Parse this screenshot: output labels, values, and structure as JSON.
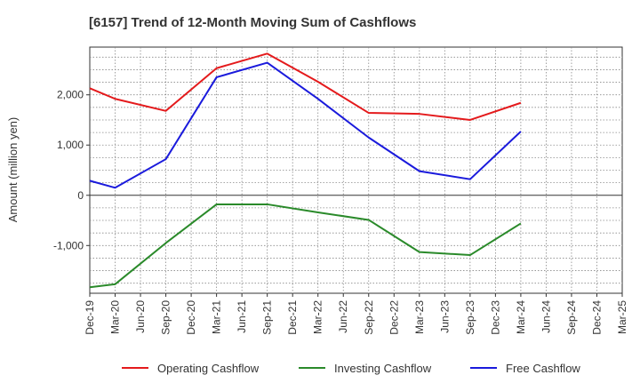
{
  "chart_data": {
    "type": "line",
    "title": "[6157]  Trend of 12-Month Moving Sum of Cashflows",
    "xlabel": "",
    "ylabel": "Amount (million yen)",
    "ylim": [
      -1950,
      2950
    ],
    "grid": true,
    "legend_position": "bottom",
    "x": [
      "Dec-19",
      "Mar-20",
      "Jun-20",
      "Sep-20",
      "Dec-20",
      "Mar-21",
      "Jun-21",
      "Sep-21",
      "Dec-21",
      "Mar-22",
      "Jun-22",
      "Sep-22",
      "Dec-22",
      "Mar-23",
      "Jun-23",
      "Sep-23",
      "Dec-23",
      "Mar-24",
      "Jun-24",
      "Sep-24",
      "Dec-24",
      "Mar-25"
    ],
    "y_ticks": [
      {
        "value": 2000,
        "label": "2,000"
      },
      {
        "value": 1000,
        "label": "1,000"
      },
      {
        "value": 0,
        "label": "0"
      },
      {
        "value": -1000,
        "label": "-1,000"
      }
    ],
    "series": [
      {
        "name": "Operating Cashflow",
        "color": "#e41a1c",
        "points": [
          {
            "x": "Dec-19",
            "y": 2130
          },
          {
            "x": "Mar-20",
            "y": 1920
          },
          {
            "x": "Sep-20",
            "y": 1680
          },
          {
            "x": "Mar-21",
            "y": 2530
          },
          {
            "x": "Sep-21",
            "y": 2820
          },
          {
            "x": "Mar-22",
            "y": 2260
          },
          {
            "x": "Sep-22",
            "y": 1640
          },
          {
            "x": "Mar-23",
            "y": 1620
          },
          {
            "x": "Sep-23",
            "y": 1500
          },
          {
            "x": "Mar-24",
            "y": 1840
          }
        ]
      },
      {
        "name": "Investing Cashflow",
        "color": "#2a8a2a",
        "points": [
          {
            "x": "Dec-19",
            "y": -1830
          },
          {
            "x": "Mar-20",
            "y": -1770
          },
          {
            "x": "Sep-20",
            "y": -950
          },
          {
            "x": "Mar-21",
            "y": -180
          },
          {
            "x": "Sep-21",
            "y": -180
          },
          {
            "x": "Mar-22",
            "y": -340
          },
          {
            "x": "Sep-22",
            "y": -490
          },
          {
            "x": "Mar-23",
            "y": -1130
          },
          {
            "x": "Sep-23",
            "y": -1190
          },
          {
            "x": "Mar-24",
            "y": -560
          }
        ]
      },
      {
        "name": "Free Cashflow",
        "color": "#1a1adc",
        "points": [
          {
            "x": "Dec-19",
            "y": 290
          },
          {
            "x": "Mar-20",
            "y": 150
          },
          {
            "x": "Sep-20",
            "y": 720
          },
          {
            "x": "Mar-21",
            "y": 2350
          },
          {
            "x": "Sep-21",
            "y": 2640
          },
          {
            "x": "Mar-22",
            "y": 1920
          },
          {
            "x": "Sep-22",
            "y": 1150
          },
          {
            "x": "Mar-23",
            "y": 480
          },
          {
            "x": "Sep-23",
            "y": 320
          },
          {
            "x": "Mar-24",
            "y": 1270
          }
        ]
      }
    ]
  }
}
